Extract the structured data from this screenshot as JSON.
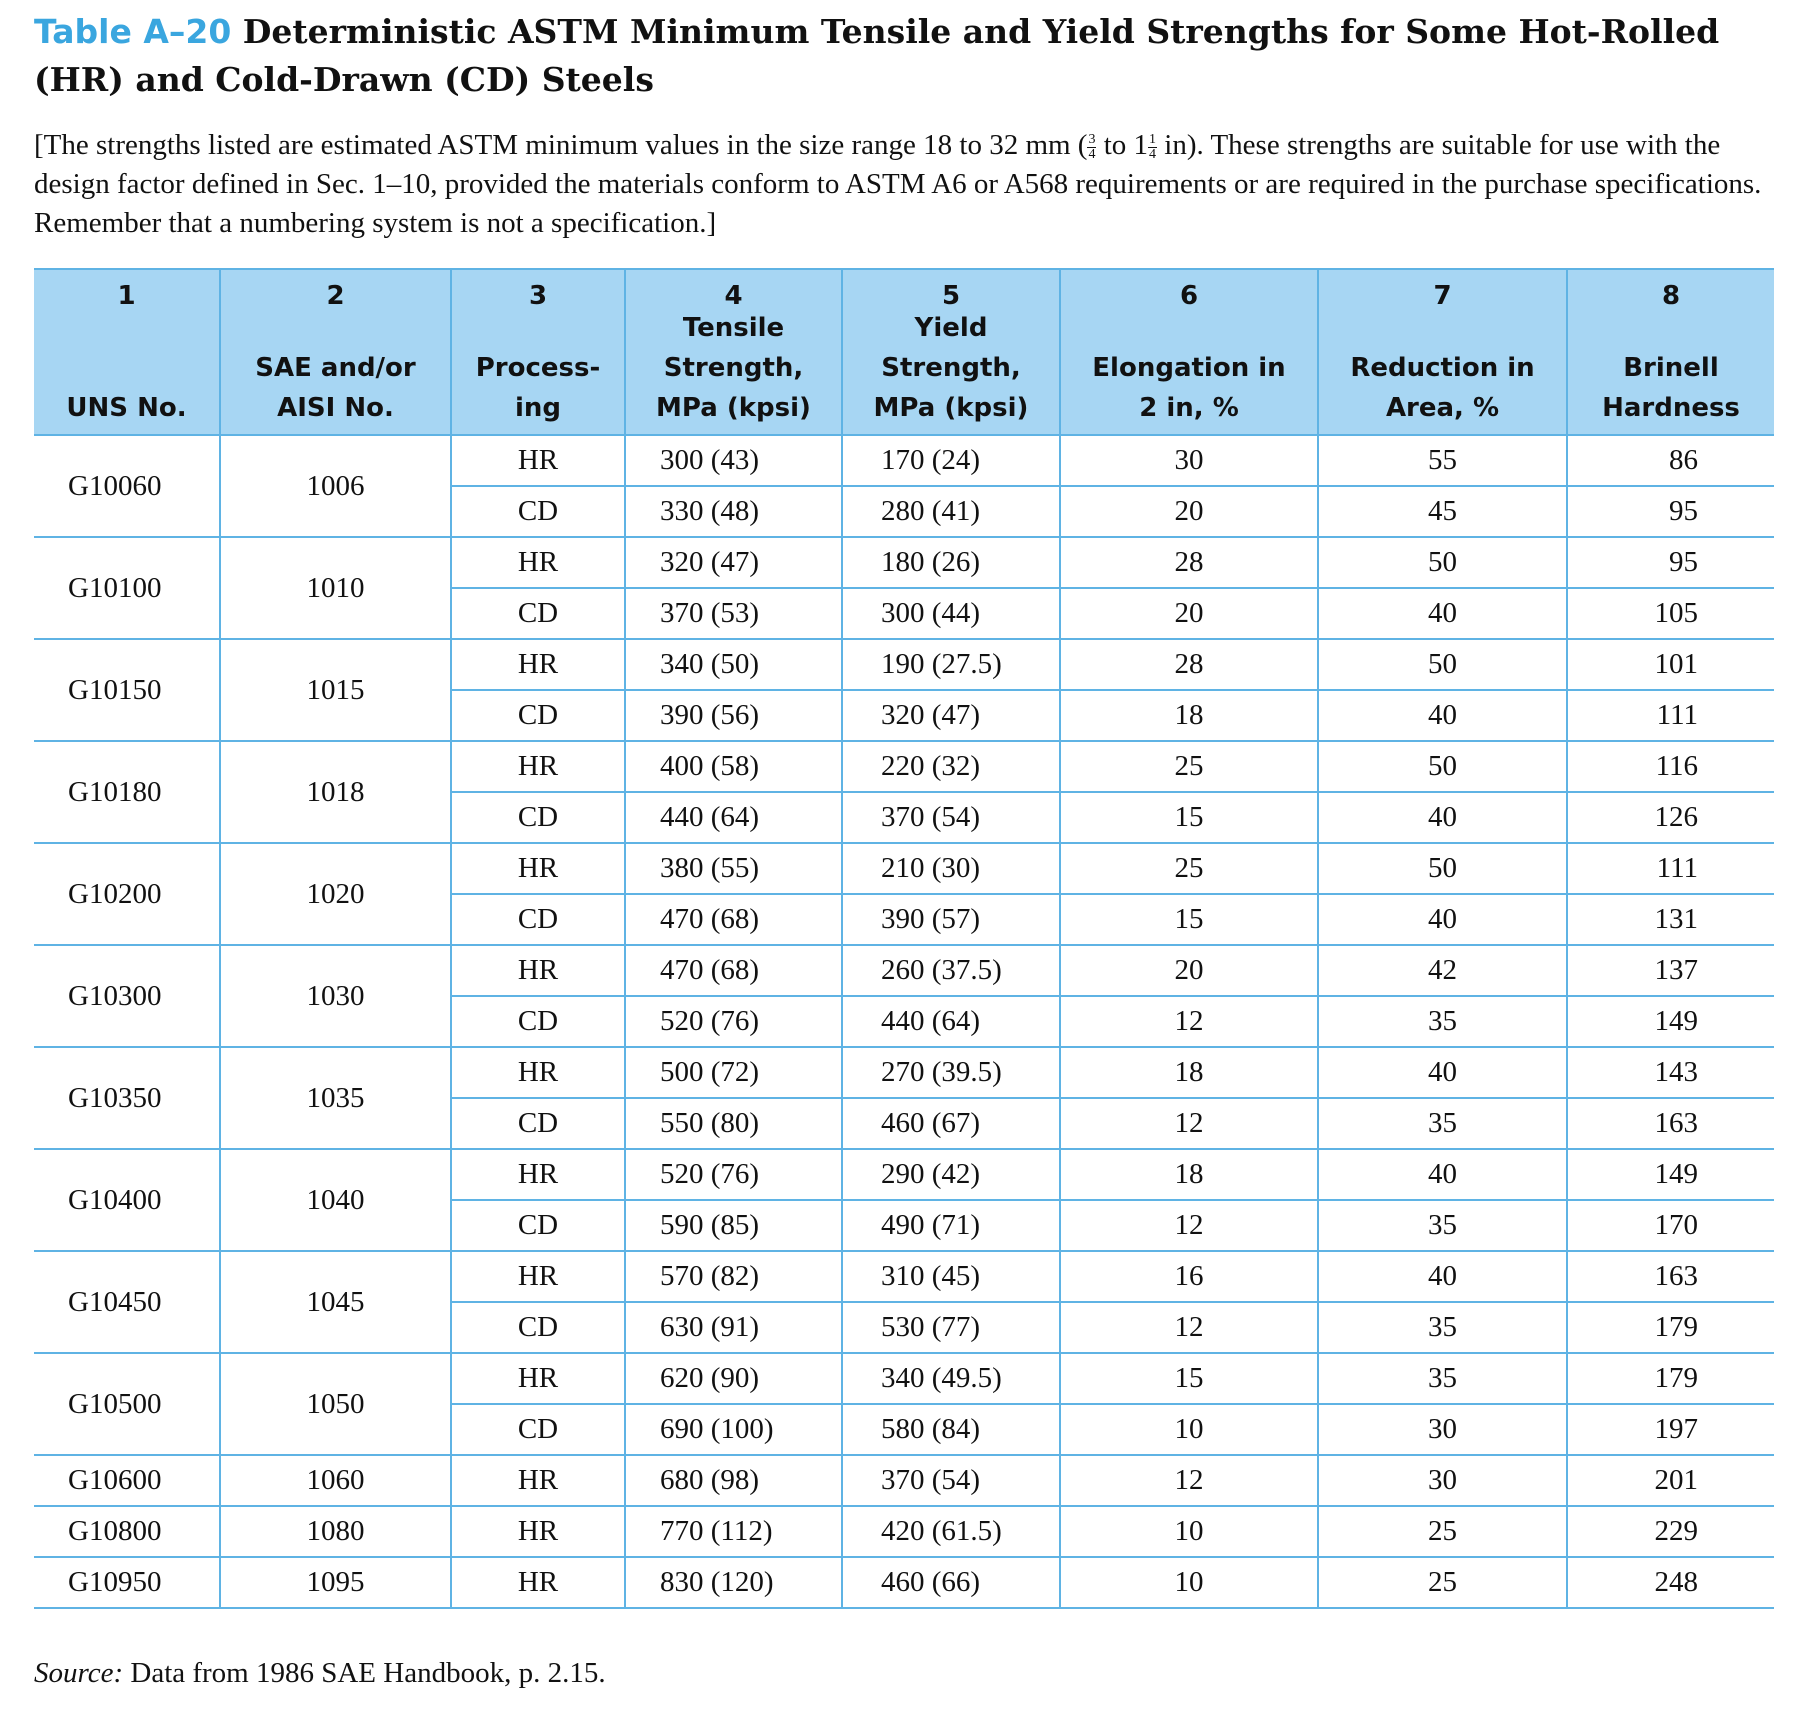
{
  "title": {
    "label": "Table A–20",
    "text": "Deterministic ASTM Minimum Tensile and Yield Strengths for Some Hot-Rolled (HR) and Cold-Drawn (CD) Steels"
  },
  "description": {
    "part1": "[The strengths listed are estimated ASTM minimum values in the size range 18 to 32 mm (",
    "frac1_num": "3",
    "frac1_den": "4",
    "between": " to 1",
    "frac2_num": "1",
    "frac2_den": "4",
    "part2": " in). These strengths are suitable for use with the design factor defined in Sec. 1–10, provided the materials conform to ASTM A6 or A568 requirements or are required in the purchase specifications. Remember that a numbering system is not a specification.]"
  },
  "columns": [
    {
      "num": "1",
      "label": "UNS No."
    },
    {
      "num": "2",
      "label": "SAE and/or AISI No."
    },
    {
      "num": "3",
      "label": "Process-ing"
    },
    {
      "num": "4",
      "label": "Tensile Strength, MPa (kpsi)"
    },
    {
      "num": "5",
      "label": "Yield Strength, MPa (kpsi)"
    },
    {
      "num": "6",
      "label": "Elongation in 2 in, %"
    },
    {
      "num": "7",
      "label": "Reduction in Area, %"
    },
    {
      "num": "8",
      "label": "Brinell Hardness"
    }
  ],
  "column_headers": {
    "h1": "UNS No.",
    "h2a": "SAE and/or",
    "h2b": "AISI No.",
    "h3a": "Process-",
    "h3b": "ing",
    "h4a": "Tensile",
    "h4b": "Strength,",
    "h4c": "MPa (kpsi)",
    "h5a": "Yield",
    "h5b": "Strength,",
    "h5c": "MPa (kpsi)",
    "h6a": "Elongation in",
    "h6b": "2 in, %",
    "h7a": "Reduction in",
    "h7b": "Area, %",
    "h8a": "Brinell",
    "h8b": "Hardness"
  },
  "rows": [
    {
      "uns": "G10060",
      "sae": "1006",
      "proc": "HR",
      "tensile": "300 (43)",
      "yield": "170 (24)",
      "elong": "30",
      "reduction": "55",
      "brinell": "86"
    },
    {
      "proc": "CD",
      "tensile": "330 (48)",
      "yield": "280 (41)",
      "elong": "20",
      "reduction": "45",
      "brinell": "95"
    },
    {
      "uns": "G10100",
      "sae": "1010",
      "proc": "HR",
      "tensile": "320 (47)",
      "yield": "180 (26)",
      "elong": "28",
      "reduction": "50",
      "brinell": "95"
    },
    {
      "proc": "CD",
      "tensile": "370 (53)",
      "yield": "300 (44)",
      "elong": "20",
      "reduction": "40",
      "brinell": "105"
    },
    {
      "uns": "G10150",
      "sae": "1015",
      "proc": "HR",
      "tensile": "340 (50)",
      "yield": "190 (27.5)",
      "elong": "28",
      "reduction": "50",
      "brinell": "101"
    },
    {
      "proc": "CD",
      "tensile": "390 (56)",
      "yield": "320 (47)",
      "elong": "18",
      "reduction": "40",
      "brinell": "111"
    },
    {
      "uns": "G10180",
      "sae": "1018",
      "proc": "HR",
      "tensile": "400 (58)",
      "yield": "220 (32)",
      "elong": "25",
      "reduction": "50",
      "brinell": "116"
    },
    {
      "proc": "CD",
      "tensile": "440 (64)",
      "yield": "370 (54)",
      "elong": "15",
      "reduction": "40",
      "brinell": "126"
    },
    {
      "uns": "G10200",
      "sae": "1020",
      "proc": "HR",
      "tensile": "380 (55)",
      "yield": "210 (30)",
      "elong": "25",
      "reduction": "50",
      "brinell": "111"
    },
    {
      "proc": "CD",
      "tensile": "470 (68)",
      "yield": "390 (57)",
      "elong": "15",
      "reduction": "40",
      "brinell": "131"
    },
    {
      "uns": "G10300",
      "sae": "1030",
      "proc": "HR",
      "tensile": "470 (68)",
      "yield": "260 (37.5)",
      "elong": "20",
      "reduction": "42",
      "brinell": "137"
    },
    {
      "proc": "CD",
      "tensile": "520 (76)",
      "yield": "440 (64)",
      "elong": "12",
      "reduction": "35",
      "brinell": "149"
    },
    {
      "uns": "G10350",
      "sae": "1035",
      "proc": "HR",
      "tensile": "500 (72)",
      "yield": "270 (39.5)",
      "elong": "18",
      "reduction": "40",
      "brinell": "143"
    },
    {
      "proc": "CD",
      "tensile": "550 (80)",
      "yield": "460 (67)",
      "elong": "12",
      "reduction": "35",
      "brinell": "163"
    },
    {
      "uns": "G10400",
      "sae": "1040",
      "proc": "HR",
      "tensile": "520 (76)",
      "yield": "290 (42)",
      "elong": "18",
      "reduction": "40",
      "brinell": "149"
    },
    {
      "proc": "CD",
      "tensile": "590 (85)",
      "yield": "490 (71)",
      "elong": "12",
      "reduction": "35",
      "brinell": "170"
    },
    {
      "uns": "G10450",
      "sae": "1045",
      "proc": "HR",
      "tensile": "570 (82)",
      "yield": "310 (45)",
      "elong": "16",
      "reduction": "40",
      "brinell": "163"
    },
    {
      "proc": "CD",
      "tensile": "630 (91)",
      "yield": "530 (77)",
      "elong": "12",
      "reduction": "35",
      "brinell": "179"
    },
    {
      "uns": "G10500",
      "sae": "1050",
      "proc": "HR",
      "tensile": "620 (90)",
      "yield": "340 (49.5)",
      "elong": "15",
      "reduction": "35",
      "brinell": "179"
    },
    {
      "proc": "CD",
      "tensile": "690 (100)",
      "yield": "580 (84)",
      "elong": "10",
      "reduction": "30",
      "brinell": "197"
    },
    {
      "uns": "G10600",
      "sae": "1060",
      "proc": "HR",
      "tensile": "680 (98)",
      "yield": "370 (54)",
      "elong": "12",
      "reduction": "30",
      "brinell": "201"
    },
    {
      "uns": "G10800",
      "sae": "1080",
      "proc": "HR",
      "tensile": "770 (112)",
      "yield": "420 (61.5)",
      "elong": "10",
      "reduction": "25",
      "brinell": "229"
    },
    {
      "uns": "G10950",
      "sae": "1095",
      "proc": "HR",
      "tensile": "830 (120)",
      "yield": "460 (66)",
      "elong": "10",
      "reduction": "25",
      "brinell": "248"
    }
  ],
  "source": {
    "label": "Source:",
    "text": " Data from 1986 SAE Handbook, p. 2.15."
  },
  "colors": {
    "accent": "#3aa6df",
    "header_bg": "#a7d6f3",
    "rule": "#5fb3e4"
  }
}
